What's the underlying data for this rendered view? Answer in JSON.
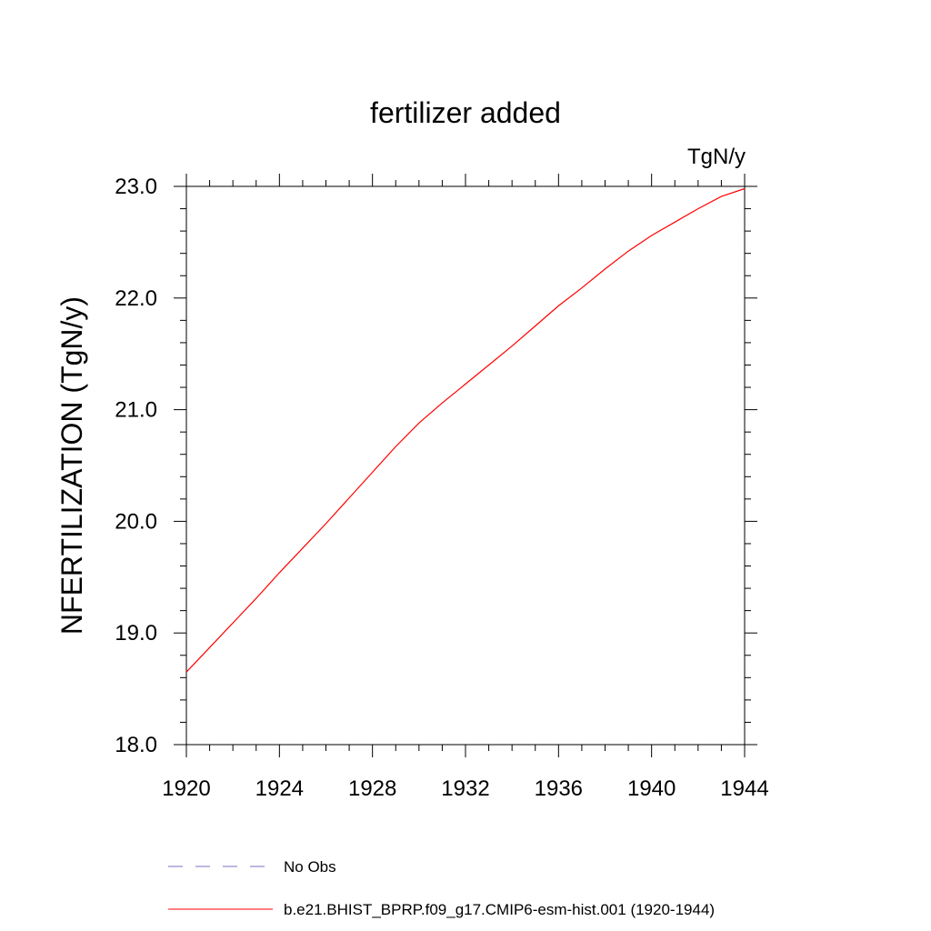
{
  "chart_data": {
    "type": "line",
    "title": "fertilizer added",
    "units": "TgN/y",
    "xlabel": "",
    "ylabel": "NFERTILIZATION  (TgN/y)",
    "xlim": [
      1920,
      1944
    ],
    "ylim": [
      18.0,
      23.0
    ],
    "x_ticks": [
      1920,
      1924,
      1928,
      1932,
      1936,
      1940,
      1944
    ],
    "x_tick_labels": [
      "1920",
      "1924",
      "1928",
      "1932",
      "1936",
      "1940",
      "1944"
    ],
    "y_ticks": [
      18.0,
      19.0,
      20.0,
      21.0,
      22.0,
      23.0
    ],
    "y_tick_labels": [
      "18.0",
      "19.0",
      "20.0",
      "21.0",
      "22.0",
      "23.0"
    ],
    "grid": false,
    "legend_position": "bottom",
    "series": [
      {
        "name": "No Obs",
        "color": "#7b6fc0",
        "dash": "dashed",
        "x": [],
        "y": []
      },
      {
        "name": "b.e21.BHIST_BPRP.f09_g17.CMIP6-esm-hist.001 (1920-1944)",
        "color": "#ff0000",
        "dash": "solid",
        "x": [
          1920,
          1921,
          1922,
          1923,
          1924,
          1925,
          1926,
          1927,
          1928,
          1929,
          1930,
          1931,
          1932,
          1933,
          1934,
          1935,
          1936,
          1937,
          1938,
          1939,
          1940,
          1941,
          1942,
          1943,
          1944
        ],
        "y": [
          18.65,
          18.87,
          19.09,
          19.31,
          19.54,
          19.76,
          19.98,
          20.21,
          20.44,
          20.67,
          20.88,
          21.06,
          21.23,
          21.4,
          21.57,
          21.75,
          21.93,
          22.09,
          22.26,
          22.42,
          22.56,
          22.68,
          22.8,
          22.91,
          22.98
        ]
      }
    ]
  }
}
